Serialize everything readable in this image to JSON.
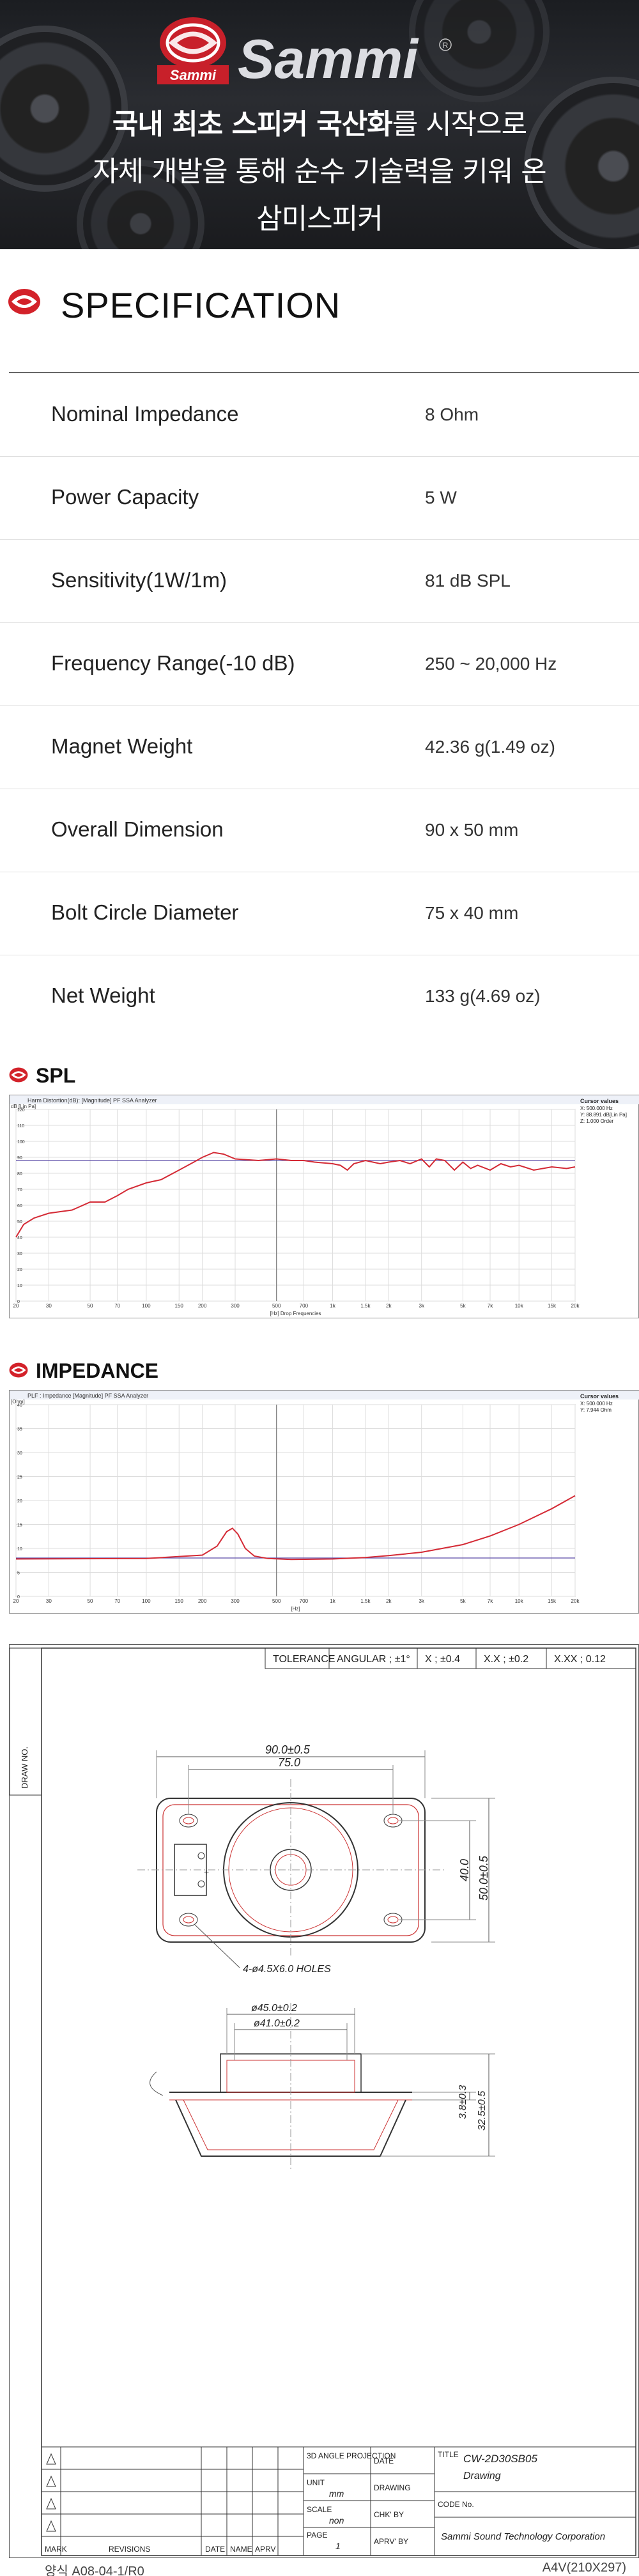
{
  "hero": {
    "brand": "Sammi",
    "badge": "Sammi",
    "reg": "R",
    "line1_bold": "국내 최초 스피커 국산화",
    "line1_rest": "를 시작으로",
    "line2": "자체 개발을 통해 순수 기술력을 키워 온",
    "line3": "삼미스피커"
  },
  "spec": {
    "title": "SPECIFICATION",
    "rows": [
      {
        "key": "Nominal Impedance",
        "value": "8 Ohm"
      },
      {
        "key": "Power Capacity",
        "value": "5 W"
      },
      {
        "key": "Sensitivity(1W/1m)",
        "value": "81 dB SPL"
      },
      {
        "key": "Frequency Range(-10 dB)",
        "value": "250 ~ 20,000 Hz"
      },
      {
        "key": "Magnet Weight",
        "value": "42.36 g(1.49 oz)"
      },
      {
        "key": "Overall Dimension",
        "value": "90 x 50 mm"
      },
      {
        "key": "Bolt Circle Diameter",
        "value": "75 x 40 mm"
      },
      {
        "key": "Net Weight",
        "value": "133 g(4.69 oz)"
      }
    ]
  },
  "colors": {
    "accent": "#d3222a",
    "curve": "#d42a35",
    "ref": "#5a4aa8"
  },
  "chart_data": [
    {
      "type": "line",
      "title": "SPL",
      "inner_title": "Harm Distortion(dB): [Magnitude] PF SSA Analyzer",
      "ylabel": "dB [Lin Pa]",
      "xlabel": "[Hz] Drop Frequencies",
      "x_scale": "log",
      "xlim": [
        20,
        20000
      ],
      "ylim": [
        0,
        120
      ],
      "x_ticks": [
        "20",
        "30",
        "50",
        "70",
        "100",
        "150",
        "200",
        "300",
        "500",
        "700",
        "1k",
        "1.5k",
        "2k",
        "3k",
        "5k",
        "7k",
        "10k",
        "15k",
        "20k"
      ],
      "y_ticks": [
        "0",
        "10",
        "20",
        "30",
        "40",
        "50",
        "60",
        "70",
        "80",
        "90",
        "100",
        "110",
        "120"
      ],
      "cursor_title": "Cursor values",
      "cursor_lines": [
        "X: 500.000 Hz",
        "Y: 88.891 dB[Lin Pa]",
        "Z: 1.000 Order"
      ],
      "series": [
        {
          "values": [
            [
              20,
              40
            ],
            [
              22,
              48
            ],
            [
              25,
              52
            ],
            [
              30,
              55
            ],
            [
              40,
              57
            ],
            [
              50,
              62
            ],
            [
              60,
              62
            ],
            [
              70,
              66
            ],
            [
              80,
              70
            ],
            [
              100,
              74
            ],
            [
              120,
              76
            ],
            [
              150,
              82
            ],
            [
              180,
              87
            ],
            [
              200,
              90
            ],
            [
              230,
              93
            ],
            [
              260,
              92
            ],
            [
              300,
              89
            ],
            [
              400,
              88
            ],
            [
              500,
              89
            ],
            [
              600,
              88
            ],
            [
              700,
              88
            ],
            [
              800,
              87
            ],
            [
              1000,
              86
            ],
            [
              1100,
              85
            ],
            [
              1200,
              82
            ],
            [
              1300,
              86
            ],
            [
              1500,
              88
            ],
            [
              1800,
              86
            ],
            [
              2000,
              87
            ],
            [
              2300,
              88
            ],
            [
              2600,
              86
            ],
            [
              3000,
              89
            ],
            [
              3300,
              84
            ],
            [
              3600,
              89
            ],
            [
              4000,
              88
            ],
            [
              4500,
              82
            ],
            [
              5000,
              87
            ],
            [
              5500,
              83
            ],
            [
              6000,
              85
            ],
            [
              7000,
              82
            ],
            [
              8000,
              86
            ],
            [
              9000,
              84
            ],
            [
              10000,
              85
            ],
            [
              12000,
              82
            ],
            [
              15000,
              84
            ],
            [
              18000,
              83
            ],
            [
              20000,
              84
            ]
          ]
        },
        {
          "values": [
            [
              20,
              88
            ],
            [
              20000,
              88
            ]
          ]
        }
      ]
    },
    {
      "type": "line",
      "title": "IMPEDANCE",
      "inner_title": "PLF : Impedance [Magnitude] PF SSA Analyzer",
      "ylabel": "[Ohm]",
      "xlabel": "[Hz]",
      "x_scale": "log",
      "xlim": [
        20,
        20000
      ],
      "ylim": [
        0,
        40
      ],
      "x_ticks": [
        "20",
        "30",
        "50",
        "70",
        "100",
        "150",
        "200",
        "300",
        "500",
        "700",
        "1k",
        "1.5k",
        "2k",
        "3k",
        "5k",
        "7k",
        "10k",
        "15k",
        "20k"
      ],
      "y_ticks": [
        "0",
        "5",
        "10",
        "15",
        "20",
        "25",
        "30",
        "35",
        "40"
      ],
      "cursor_title": "Cursor values",
      "cursor_lines": [
        "X: 500.000 Hz",
        "Y: 7.944 Ohm"
      ],
      "series": [
        {
          "values": [
            [
              20,
              7.8
            ],
            [
              100,
              7.9
            ],
            [
              200,
              8.6
            ],
            [
              240,
              10.5
            ],
            [
              270,
              13.5
            ],
            [
              290,
              14.2
            ],
            [
              310,
              13
            ],
            [
              340,
              10
            ],
            [
              380,
              8.4
            ],
            [
              450,
              7.9
            ],
            [
              600,
              7.7
            ],
            [
              1000,
              7.8
            ],
            [
              1500,
              8.1
            ],
            [
              2000,
              8.5
            ],
            [
              3000,
              9.2
            ],
            [
              5000,
              10.8
            ],
            [
              7000,
              12.6
            ],
            [
              10000,
              15
            ],
            [
              15000,
              18.3
            ],
            [
              20000,
              21
            ]
          ]
        },
        {
          "values": [
            [
              20,
              8
            ],
            [
              20000,
              8
            ]
          ]
        }
      ]
    }
  ],
  "drawing": {
    "tolerance": "TOLERANCE",
    "angular": "ANGULAR ; ±1°",
    "x1": "X ; ±0.4",
    "x2": "X.X ; ±0.2",
    "x3": "X.XX ; 0.12",
    "drawno": "DRAW NO.",
    "dim_90": "90.0±0.5",
    "dim_75": "75.0",
    "dim_40": "40.0",
    "dim_50": "50.0±0.5",
    "holes": "4-ø4.5X6.0 HOLES",
    "dim_45": "ø45.0±0.2",
    "dim_41": "ø41.0±0.2",
    "dim_38": "3.8±0.3",
    "dim_325": "32.5±0.5",
    "tb_3d": "3D ANGLE PROJECTION",
    "tb_date": "DATE",
    "tb_unit": "UNIT",
    "tb_mm": "mm",
    "tb_drawing": "DRAWING",
    "tb_scale": "SCALE",
    "tb_non": "non",
    "tb_chk": "CHK' BY",
    "tb_page": "PAGE",
    "tb_1": "1",
    "tb_aprv": "APRV' BY",
    "tb_title": "TITLE",
    "tb_model": "CW-2D30SB05",
    "tb_drawingword": "Drawing",
    "tb_code": "CODE No.",
    "tb_company": "Sammi Sound Technology Corporation",
    "rev_mark": "MARK",
    "rev_revisions": "REVISIONS",
    "rev_date": "DATE",
    "rev_name": "NAME",
    "rev_aprv": "APRV"
  },
  "footer": {
    "left": "양식 A08-04-1/R0",
    "right": "A4V(210X297)"
  }
}
